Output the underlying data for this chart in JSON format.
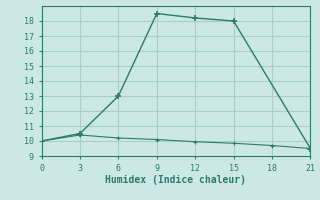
{
  "xlabel": "Humidex (Indice chaleur)",
  "line1_x": [
    0,
    3,
    6,
    9,
    12,
    15,
    21
  ],
  "line1_y": [
    10,
    10.5,
    13,
    18.5,
    18.2,
    18.0,
    9.5
  ],
  "line2_x": [
    0,
    3,
    6,
    9,
    12,
    15,
    18,
    21
  ],
  "line2_y": [
    10,
    10.4,
    10.2,
    10.1,
    9.95,
    9.85,
    9.7,
    9.5
  ],
  "line_color": "#2a7a6e",
  "bg_color": "#cce8e4",
  "grid_color": "#aacfca",
  "xlim": [
    0,
    21
  ],
  "ylim": [
    9,
    19
  ],
  "xticks": [
    0,
    3,
    6,
    9,
    12,
    15,
    18,
    21
  ],
  "yticks": [
    9,
    10,
    11,
    12,
    13,
    14,
    15,
    16,
    17,
    18
  ]
}
